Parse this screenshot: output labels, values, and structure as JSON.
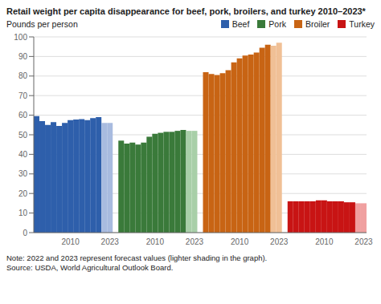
{
  "chart_data": {
    "type": "bar",
    "title": "Retail weight per capita disappearance for beef, pork, broilers, and turkey 2010–2023*",
    "ylabel": "Pounds per person",
    "note": "Note: 2022 and 2023 represent forecast values (lighter shading in the graph).",
    "source": "Source: USDA, World Agricultural Outlook Board.",
    "ylim": [
      0,
      100
    ],
    "yticks": [
      0,
      10,
      20,
      30,
      40,
      50,
      60,
      70,
      80,
      90,
      100
    ],
    "grid": true,
    "categories": [
      null,
      null,
      null,
      null,
      null,
      null,
      "2010",
      null,
      null,
      null,
      null,
      null,
      null,
      "2023",
      null,
      null,
      null,
      null,
      null,
      null,
      null,
      "2010",
      null,
      null,
      null,
      null,
      null,
      null,
      "2023",
      null,
      null,
      null,
      null,
      null,
      null,
      null,
      "2010",
      null,
      null,
      null,
      null,
      null,
      null,
      "2023",
      null,
      null,
      null,
      null,
      null,
      null,
      null,
      "2010",
      null,
      null,
      null,
      null,
      null,
      null,
      "2023"
    ],
    "series": [
      {
        "name": "Beef",
        "color": "#2E5FAB",
        "values": [
          59.5,
          57.0,
          55.0,
          56.5,
          54.5,
          56.0,
          57.5,
          57.8,
          58.0,
          57.5,
          58.5,
          59.0,
          56.0,
          56.0,
          null,
          null,
          null,
          null,
          null,
          null,
          null,
          null,
          null,
          null,
          null,
          null,
          null,
          null,
          null,
          null,
          null,
          null,
          null,
          null,
          null,
          null,
          null,
          null,
          null,
          null,
          null,
          null,
          null,
          null,
          null,
          null,
          null,
          null,
          null,
          null,
          null,
          null,
          null,
          null,
          null,
          null,
          null,
          null,
          null
        ],
        "colors": [
          "#2E5FAB",
          "#2E5FAB",
          "#2E5FAB",
          "#2E5FAB",
          "#2E5FAB",
          "#2E5FAB",
          "#2E5FAB",
          "#2E5FAB",
          "#2E5FAB",
          "#2E5FAB",
          "#2E5FAB",
          "#2E5FAB",
          "#A8BBDF",
          "#A8BBDF",
          null,
          null,
          null,
          null,
          null,
          null,
          null,
          null,
          null,
          null,
          null,
          null,
          null,
          null,
          null,
          null,
          null,
          null,
          null,
          null,
          null,
          null,
          null,
          null,
          null,
          null,
          null,
          null,
          null,
          null,
          null,
          null,
          null,
          null,
          null,
          null,
          null,
          null,
          null,
          null,
          null,
          null,
          null,
          null,
          null
        ]
      },
      {
        "name": "Pork",
        "color": "#3A7A3A",
        "values": [
          null,
          null,
          null,
          null,
          null,
          null,
          null,
          null,
          null,
          null,
          null,
          null,
          null,
          null,
          null,
          47.0,
          45.5,
          46.0,
          45.0,
          46.0,
          49.0,
          50.5,
          51.0,
          51.5,
          51.5,
          52.0,
          52.5,
          52.0,
          52.0,
          null,
          null,
          null,
          null,
          null,
          null,
          null,
          null,
          null,
          null,
          null,
          null,
          null,
          null,
          null,
          null,
          null,
          null,
          null,
          null,
          null,
          null,
          null,
          null,
          null,
          null,
          null,
          null,
          null,
          null
        ],
        "colors": [
          null,
          null,
          null,
          null,
          null,
          null,
          null,
          null,
          null,
          null,
          null,
          null,
          null,
          null,
          null,
          "#3A7A3A",
          "#3A7A3A",
          "#3A7A3A",
          "#3A7A3A",
          "#3A7A3A",
          "#3A7A3A",
          "#3A7A3A",
          "#3A7A3A",
          "#3A7A3A",
          "#3A7A3A",
          "#3A7A3A",
          "#3A7A3A",
          "#A8CFA8",
          "#A8CFA8",
          null,
          null,
          null,
          null,
          null,
          null,
          null,
          null,
          null,
          null,
          null,
          null,
          null,
          null,
          null,
          null,
          null,
          null,
          null,
          null,
          null,
          null,
          null,
          null,
          null,
          null,
          null,
          null,
          null,
          null
        ]
      },
      {
        "name": "Broiler",
        "color": "#C86414",
        "values": [
          null,
          null,
          null,
          null,
          null,
          null,
          null,
          null,
          null,
          null,
          null,
          null,
          null,
          null,
          null,
          null,
          null,
          null,
          null,
          null,
          null,
          null,
          null,
          null,
          null,
          null,
          null,
          null,
          null,
          null,
          82.0,
          81.0,
          80.5,
          81.5,
          83.0,
          87.0,
          89.0,
          90.5,
          91.0,
          92.0,
          94.5,
          96.0,
          95.5,
          97.0,
          null,
          null,
          null,
          null,
          null,
          null,
          null,
          null,
          null,
          null,
          null,
          null,
          null,
          null,
          null
        ],
        "colors": [
          null,
          null,
          null,
          null,
          null,
          null,
          null,
          null,
          null,
          null,
          null,
          null,
          null,
          null,
          null,
          null,
          null,
          null,
          null,
          null,
          null,
          null,
          null,
          null,
          null,
          null,
          null,
          null,
          null,
          null,
          "#C86414",
          "#C86414",
          "#C86414",
          "#C86414",
          "#C86414",
          "#C86414",
          "#C86414",
          "#C86414",
          "#C86414",
          "#C86414",
          "#C86414",
          "#C86414",
          "#F0C096",
          "#F0C096",
          null,
          null,
          null,
          null,
          null,
          null,
          null,
          null,
          null,
          null,
          null,
          null,
          null,
          null,
          null
        ]
      },
      {
        "name": "Turkey",
        "color": "#C81414",
        "values": [
          null,
          null,
          null,
          null,
          null,
          null,
          null,
          null,
          null,
          null,
          null,
          null,
          null,
          null,
          null,
          null,
          null,
          null,
          null,
          null,
          null,
          null,
          null,
          null,
          null,
          null,
          null,
          null,
          null,
          null,
          null,
          null,
          null,
          null,
          null,
          null,
          null,
          null,
          null,
          null,
          null,
          null,
          null,
          null,
          null,
          16.0,
          16.0,
          16.0,
          16.0,
          16.0,
          16.5,
          16.5,
          16.0,
          16.0,
          16.0,
          15.5,
          15.5,
          15.0,
          15.0
        ],
        "colors": [
          null,
          null,
          null,
          null,
          null,
          null,
          null,
          null,
          null,
          null,
          null,
          null,
          null,
          null,
          null,
          null,
          null,
          null,
          null,
          null,
          null,
          null,
          null,
          null,
          null,
          null,
          null,
          null,
          null,
          null,
          null,
          null,
          null,
          null,
          null,
          null,
          null,
          null,
          null,
          null,
          null,
          null,
          null,
          null,
          null,
          "#C81414",
          "#C81414",
          "#C81414",
          "#C81414",
          "#C81414",
          "#C81414",
          "#C81414",
          "#C81414",
          "#C81414",
          "#C81414",
          "#C81414",
          "#C81414",
          "#F0A0A0",
          "#F0A0A0"
        ]
      }
    ]
  }
}
